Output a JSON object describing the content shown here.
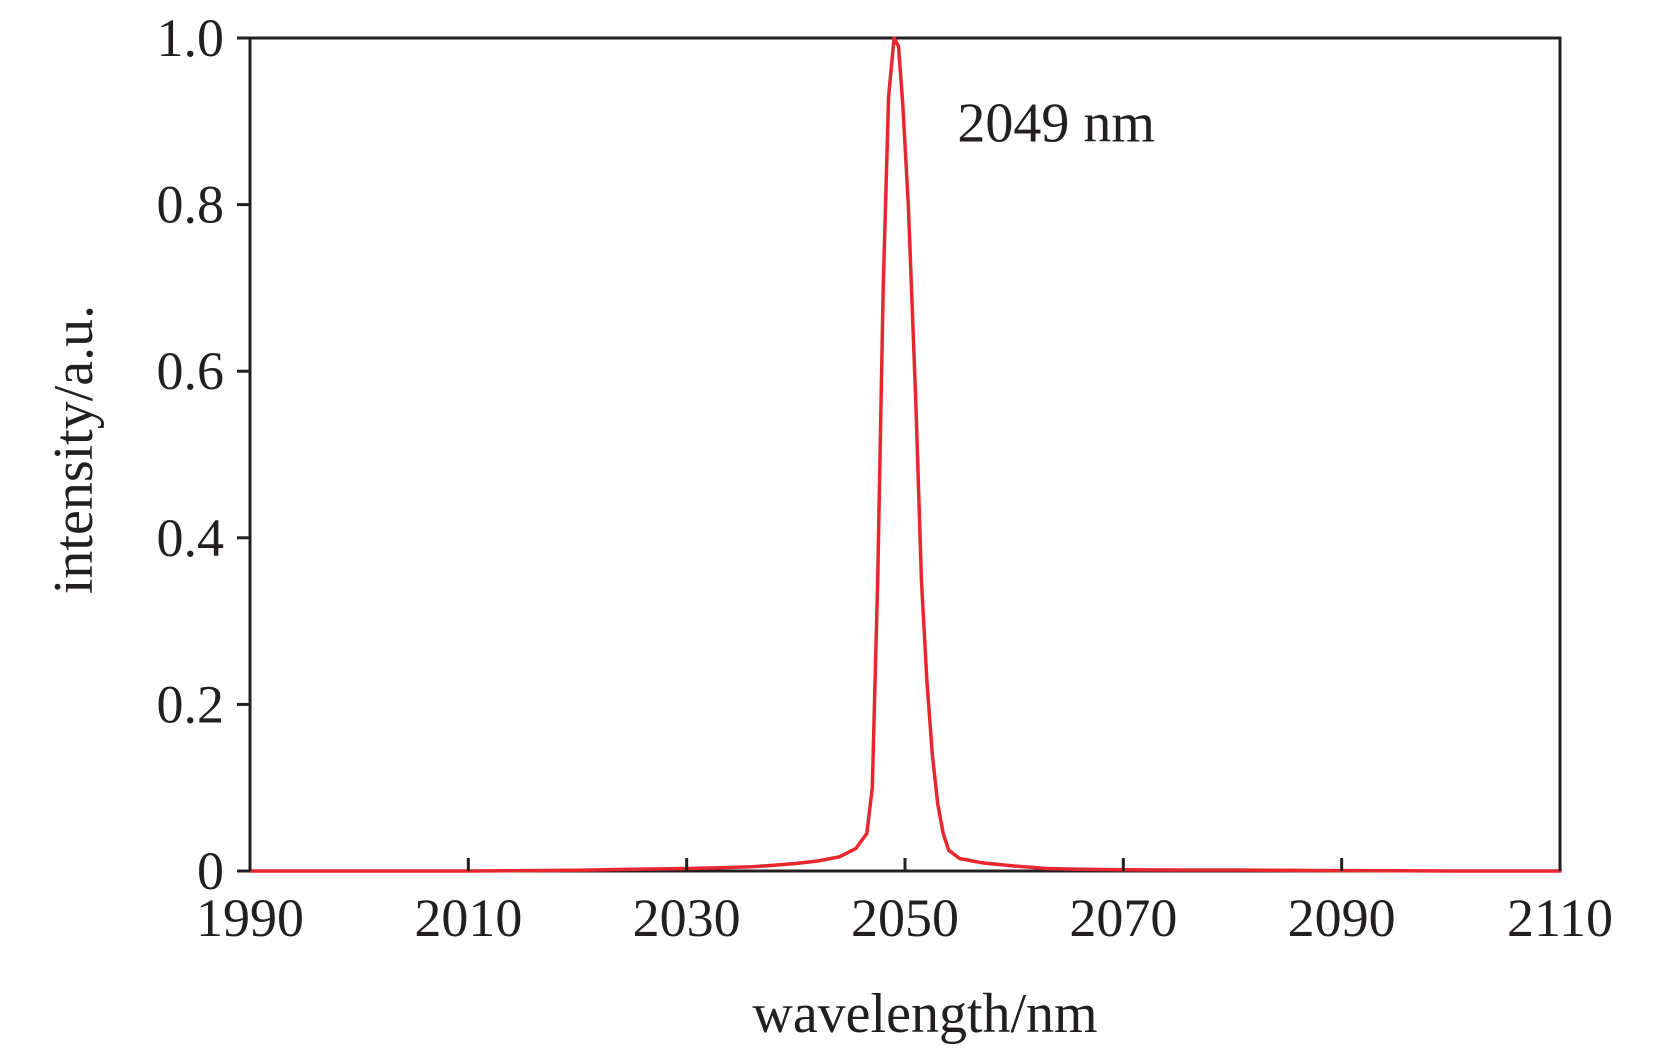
{
  "chart_data": {
    "type": "line",
    "title": "",
    "xlabel": "wavelength/nm",
    "ylabel": "intensity/a.u.",
    "xlim": [
      1990,
      2110
    ],
    "ylim": [
      0,
      1.0
    ],
    "grid": false,
    "x_ticks": [
      1990,
      2010,
      2030,
      2050,
      2070,
      2090,
      2110
    ],
    "x_tick_labels": [
      "1990",
      "2010",
      "2030",
      "2050",
      "2070",
      "2090",
      "2110"
    ],
    "y_ticks": [
      0,
      0.2,
      0.4,
      0.6,
      0.8,
      1.0
    ],
    "y_tick_labels": [
      "0",
      "0.2",
      "0.4",
      "0.6",
      "0.8",
      "1.0"
    ],
    "annotations": [
      {
        "text": "2049 nm",
        "x": 2054.8,
        "y": 0.9
      }
    ],
    "colors": {
      "line": "#e8262d",
      "axes": "#231f20"
    },
    "series": [
      {
        "x": [
          1990,
          2000,
          2010,
          2020,
          2025,
          2030,
          2033,
          2036,
          2038,
          2040,
          2042,
          2044,
          2045.5,
          2046.5,
          2047,
          2047.5,
          2048,
          2048.5,
          2049,
          2049.4,
          2049.8,
          2050.3,
          2051,
          2051.5,
          2052,
          2052.5,
          2053,
          2053.5,
          2054,
          2055,
          2057,
          2060,
          2063,
          2066,
          2070,
          2075,
          2080,
          2090,
          2100,
          2110
        ],
        "y": [
          0.0,
          0.0,
          0.0,
          0.001,
          0.002,
          0.003,
          0.004,
          0.005,
          0.007,
          0.009,
          0.012,
          0.017,
          0.027,
          0.045,
          0.1,
          0.35,
          0.7,
          0.93,
          1.0,
          0.99,
          0.92,
          0.8,
          0.56,
          0.35,
          0.23,
          0.14,
          0.08,
          0.045,
          0.025,
          0.015,
          0.01,
          0.006,
          0.003,
          0.002,
          0.0015,
          0.0012,
          0.0012,
          0.0005,
          0.0,
          0.0
        ]
      }
    ]
  }
}
